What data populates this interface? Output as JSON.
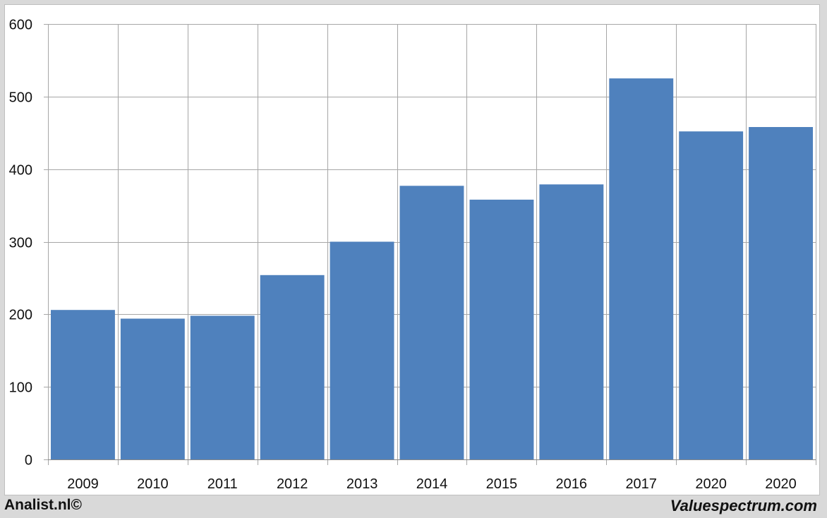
{
  "colors": {
    "bar": "#4f81bd",
    "grid": "#a6a6a6",
    "background": "#ffffff"
  },
  "footer": {
    "left": "Analist.nl©",
    "right": "Valuespectrum.com"
  },
  "chart_data": {
    "type": "bar",
    "title": "",
    "xlabel": "",
    "ylabel": "",
    "categories": [
      "2009",
      "2010",
      "2011",
      "2012",
      "2013",
      "2014",
      "2015",
      "2016",
      "2017",
      "2020",
      "2020"
    ],
    "values": [
      206,
      194,
      198,
      254,
      300,
      377,
      358,
      379,
      525,
      452,
      458
    ],
    "ylim": [
      0,
      600
    ],
    "yticks": [
      0,
      100,
      200,
      300,
      400,
      500,
      600
    ],
    "grid": true,
    "legend": "none"
  }
}
